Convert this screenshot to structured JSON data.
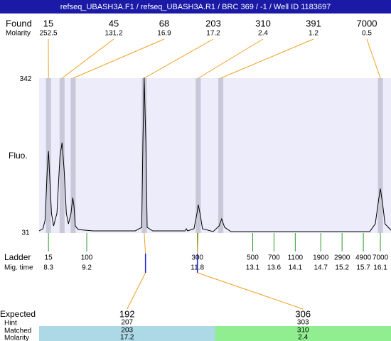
{
  "title": "refseq_UBASH3A.F1 / refseq_UBASH3A.R1 / BRC 369 / -1 / Well ID 1183697",
  "found": {
    "label": "Found",
    "molarity_label": "Molarity",
    "peaks": [
      {
        "size": 15,
        "molarity": 252.5,
        "time": 8.3
      },
      {
        "size": 45,
        "molarity": 131.2,
        "time": 8.62
      },
      {
        "size": 68,
        "molarity": 16.9,
        "time": 8.88
      },
      {
        "size": 203,
        "molarity": 17.2,
        "time": 10.55
      },
      {
        "size": 310,
        "molarity": 2.4,
        "time": 11.82
      },
      {
        "size": 391,
        "molarity": 1.2,
        "time": 12.35
      },
      {
        "size": 7000,
        "molarity": 0.5,
        "time": 16.1
      }
    ]
  },
  "chart_data": {
    "type": "line",
    "ylabel": "Fluo.",
    "color": "#000000",
    "ylim": [
      31,
      344
    ],
    "yticks": [
      31,
      342
    ],
    "xlim": [
      8.08,
      16.35
    ],
    "x": [
      8.08,
      8.17,
      8.22,
      8.27,
      8.3,
      8.33,
      8.37,
      8.42,
      8.5,
      8.57,
      8.62,
      8.67,
      8.72,
      8.77,
      8.83,
      8.87,
      8.9,
      8.93,
      9.0,
      9.34,
      10.34,
      10.49,
      10.52,
      10.55,
      10.59,
      10.62,
      10.75,
      11.51,
      11.54,
      11.57,
      11.72,
      11.79,
      11.82,
      11.86,
      11.92,
      12.17,
      12.31,
      12.37,
      12.44,
      12.59,
      15.85,
      15.98,
      16.05,
      16.1,
      16.15,
      16.21,
      16.35
    ],
    "values": [
      35.3,
      39.6,
      56.7,
      156.5,
      196.5,
      142.3,
      71,
      45.3,
      71,
      185,
      213.6,
      156.5,
      71,
      49.5,
      71,
      102.3,
      85.2,
      45.3,
      38.1,
      35.3,
      35.3,
      42.4,
      213.6,
      344.9,
      213.6,
      42.4,
      35.3,
      35.3,
      39.6,
      35.3,
      39.6,
      71,
      88.1,
      71,
      39.6,
      33.9,
      45.3,
      59.5,
      42.4,
      33.9,
      33.9,
      49.5,
      92.3,
      120.9,
      92.3,
      49.5,
      36.7
    ]
  },
  "ladder": {
    "label": "Ladder",
    "time_label": "Mig. time",
    "sizes": [
      15,
      100,
      300,
      500,
      700,
      1100,
      1900,
      2900,
      4900,
      7000
    ],
    "times": [
      8.3,
      9.2,
      11.8,
      13.1,
      13.6,
      14.1,
      14.7,
      15.2,
      15.7,
      16.1
    ]
  },
  "expected": {
    "label": "Expected",
    "hint_label": "Hint",
    "matched_label": "Matched",
    "molarity_label": "Molarity",
    "items": [
      {
        "size": 192,
        "hint": 207,
        "matched": 203,
        "molarity": 17.2,
        "time": 10.58,
        "color": "#add8e6"
      },
      {
        "size": 306,
        "hint": 303,
        "matched": 310,
        "molarity": 2.4,
        "time": 11.8,
        "color": "#90ee90"
      }
    ]
  }
}
